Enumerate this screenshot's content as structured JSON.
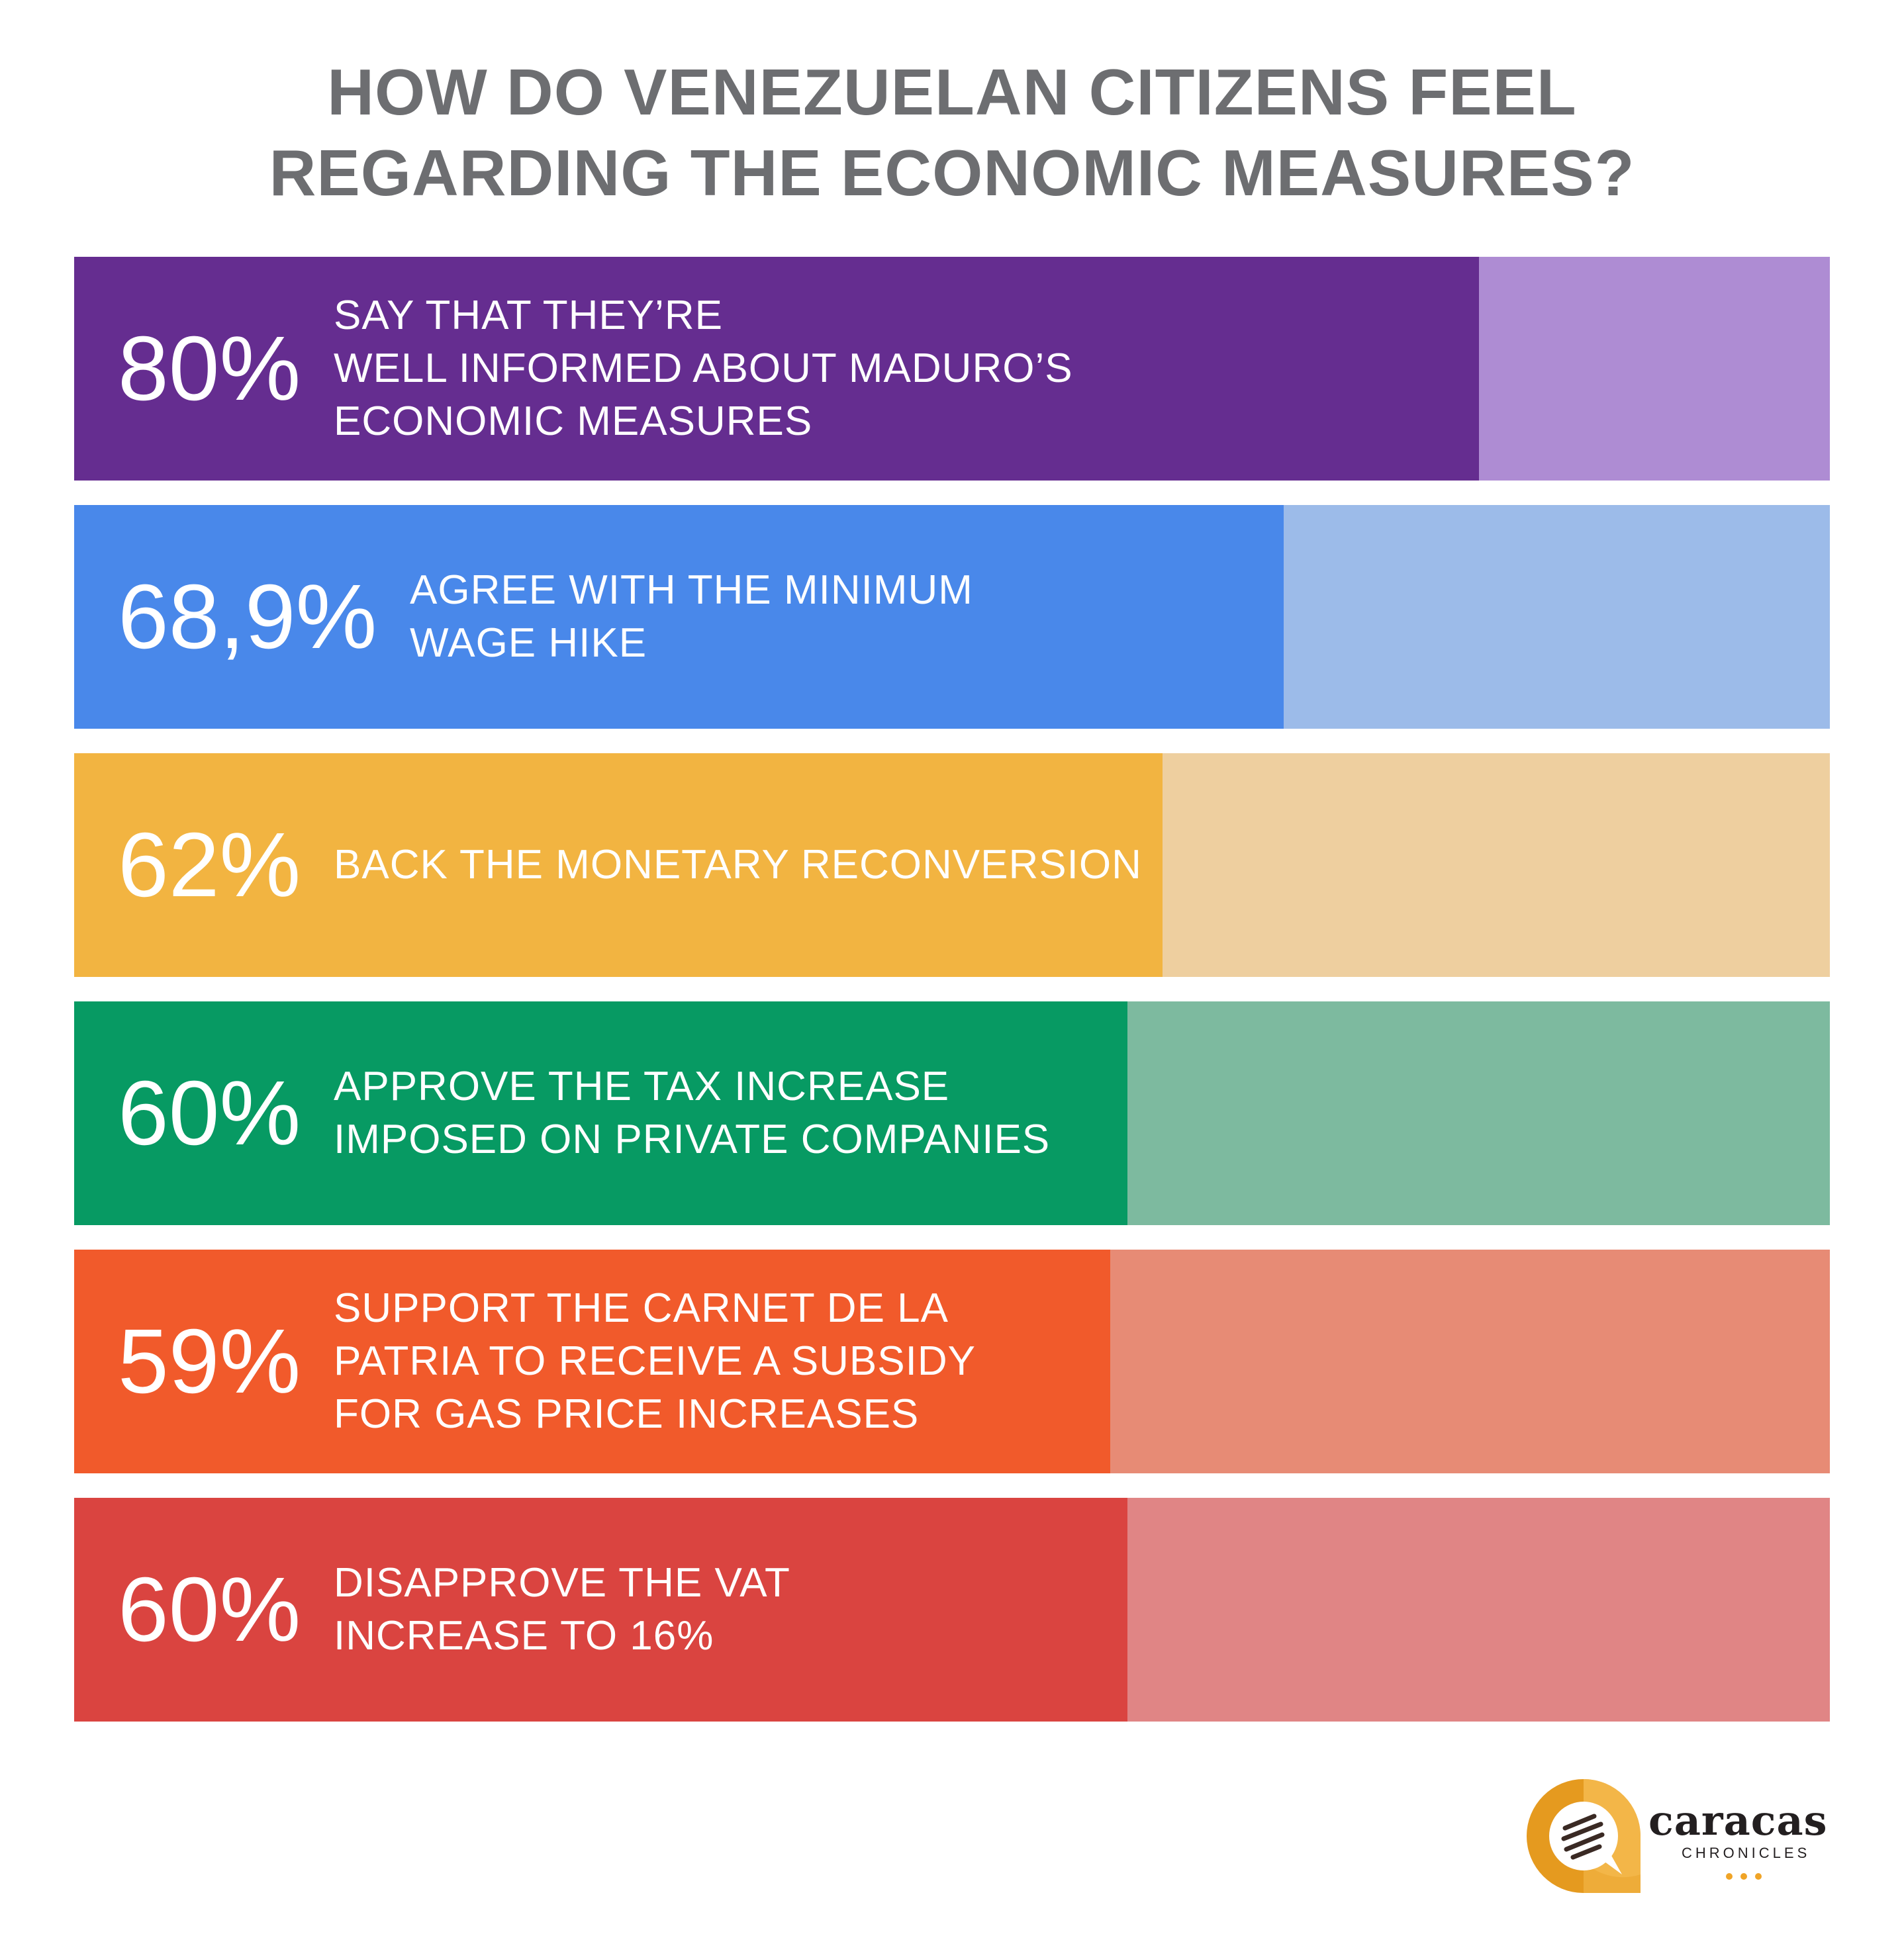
{
  "title_line_1": "HOW DO VENEZUELAN CITIZENS FEEL",
  "title_line_2": "REGARDING THE ECONOMIC MEASURES?",
  "logo": {
    "wordmark": "caracas",
    "subtitle": "CHRONICLES",
    "icon": "speech-bubble-icon",
    "accent_color": "#f0a427"
  },
  "chart_data": {
    "type": "bar",
    "orientation": "horizontal",
    "title": "HOW DO VENEZUELAN CITIZENS FEEL REGARDING THE ECONOMIC MEASURES?",
    "xlim": [
      0,
      100
    ],
    "grid": false,
    "bars": [
      {
        "value": 80,
        "value_label": "80%",
        "label": "SAY THAT THEY’RE\nWELL INFORMED ABOUT MADURO’S\nECONOMIC MEASURES",
        "color": "#652d90",
        "track_color": "#ae8cd3"
      },
      {
        "value": 68.9,
        "value_label": "68,9%",
        "label": "AGREE WITH THE MINIMUM\nWAGE HIKE",
        "color": "#4988ea",
        "track_color": "#9cbbe9"
      },
      {
        "value": 62,
        "value_label": "62%",
        "label": "BACK THE MONETARY RECONVERSION",
        "color": "#f2b441",
        "track_color": "#eecf9f"
      },
      {
        "value": 60,
        "value_label": "60%",
        "label": "APPROVE THE TAX INCREASE\nIMPOSED ON PRIVATE COMPANIES",
        "color": "#079a63",
        "track_color": "#7dba9f"
      },
      {
        "value": 59,
        "value_label": "59%",
        "label": "SUPPORT THE CARNET DE LA\nPATRIA TO RECEIVE A SUBSIDY\nFOR GAS PRICE INCREASES",
        "color": "#f15a2b",
        "track_color": "#e78b75"
      },
      {
        "value": 60,
        "value_label": "60%",
        "label": "DISAPPROVE THE VAT\nINCREASE TO 16%",
        "color": "#da4440",
        "track_color": "#e08585"
      }
    ]
  }
}
